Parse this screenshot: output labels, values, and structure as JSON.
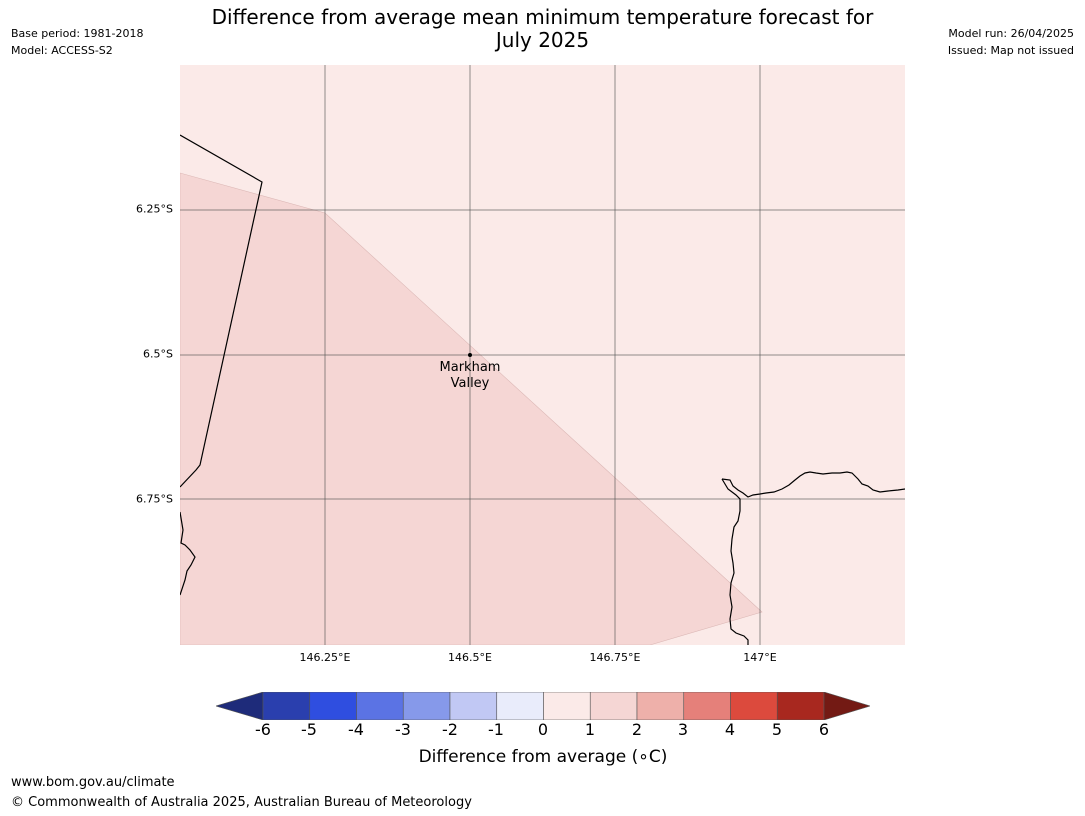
{
  "title_line1": "Difference from average mean minimum temperature forecast for",
  "title_line2": "July 2025",
  "meta_left": {
    "base_period": "Base period: 1981-2018",
    "model": "Model: ACCESS-S2"
  },
  "meta_right": {
    "model_run": "Model run: 26/04/2025",
    "issued": "Issued: Map not issued"
  },
  "latitudes": [
    "6.25°S",
    "6.5°S",
    "6.75°S"
  ],
  "longitudes": [
    "146.25°E",
    "146.5°E",
    "146.75°E",
    "147°E"
  ],
  "place": {
    "line1": "Markham",
    "line2": "Valley"
  },
  "colors": {
    "map_region_1_to_2": "#f5d6d4",
    "map_region_0_to_1": "#fbeae8",
    "bins": [
      "#1e2b7a",
      "#2a3fae",
      "#2f4ee0",
      "#5b73e4",
      "#8699ea",
      "#c1c8f4",
      "#e9ecfb",
      "#fbeae8",
      "#f5d6d4",
      "#eeb0aa",
      "#e5807a",
      "#dc4a3d",
      "#a8281f",
      "#731a14"
    ]
  },
  "colorbar_ticks": [
    "-6",
    "-5",
    "-4",
    "-3",
    "-2",
    "-1",
    "0",
    "1",
    "2",
    "3",
    "4",
    "5",
    "6"
  ],
  "colorbar_label": "Difference from average (∘C)",
  "footer": {
    "url": "www.bom.gov.au/climate",
    "copyright": "© Commonwealth of Australia 2025, Australian Bureau of Meteorology"
  }
}
